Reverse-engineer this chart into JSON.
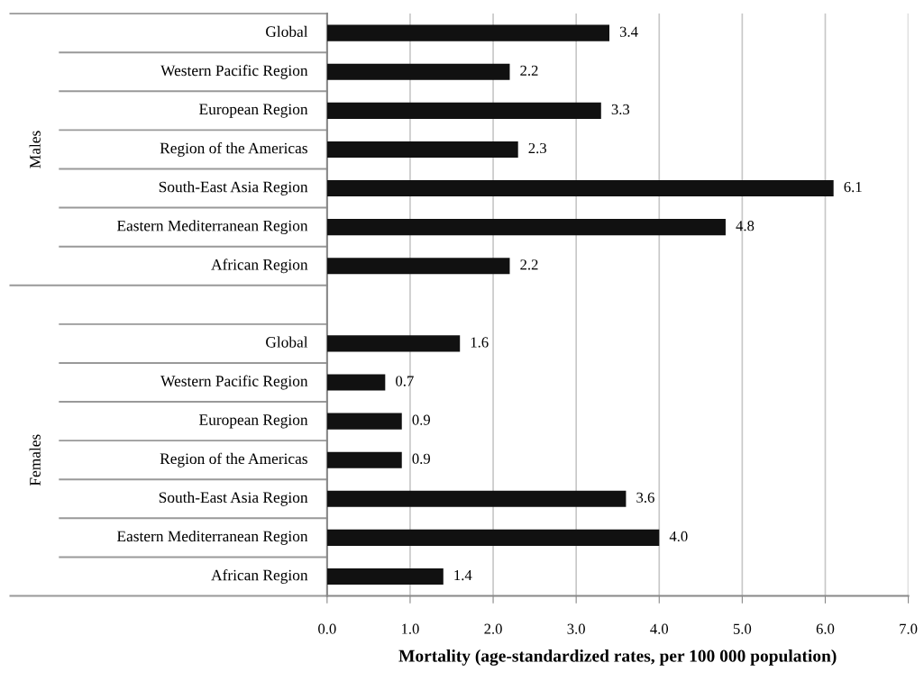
{
  "chart_data": {
    "type": "bar",
    "orientation": "horizontal",
    "xlabel": "Mortality (age-standardized rates, per 100 000 population)",
    "categories": [
      "Global",
      "Western Pacific Region",
      "European Region",
      "Region of the Americas",
      "South-East Asia Region",
      "Eastern Mediterranean Region",
      "African Region",
      null,
      "Global",
      "Western Pacific Region",
      "European Region",
      "Region of the Americas",
      "South-East Asia Region",
      "Eastern Mediterranean Region",
      "African Region"
    ],
    "values": [
      3.4,
      2.2,
      3.3,
      2.3,
      6.1,
      4.8,
      2.2,
      null,
      1.6,
      0.7,
      0.9,
      0.9,
      3.6,
      4.0,
      1.4
    ],
    "value_labels": [
      "3.4",
      "2.2",
      "3.3",
      "2.3",
      "6.1",
      "4.8",
      "2.2",
      null,
      "1.6",
      "0.7",
      "0.9",
      "0.9",
      "3.6",
      "4.0",
      "1.4"
    ],
    "color": "#111111",
    "annotations": [
      "Males",
      "Females"
    ],
    "xlim": [
      0,
      7
    ],
    "xticks": [
      {
        "value": 0,
        "label": "0.0"
      },
      {
        "value": 1,
        "label": "1.0"
      },
      {
        "value": 2,
        "label": "2.0"
      },
      {
        "value": 3,
        "label": "3.0"
      },
      {
        "value": 4,
        "label": "4.0"
      },
      {
        "value": 5,
        "label": "5.0"
      },
      {
        "value": 6,
        "label": "6.0"
      },
      {
        "value": 7,
        "label": "7.0"
      }
    ],
    "grid": "x"
  }
}
